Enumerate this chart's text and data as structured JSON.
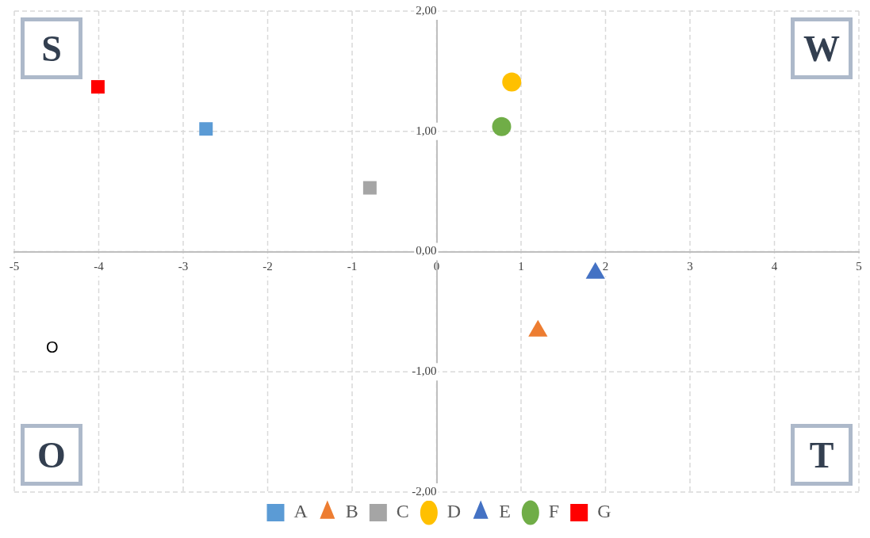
{
  "chart_data": {
    "type": "scatter",
    "xlim": [
      -5,
      5
    ],
    "xticks": [
      -5,
      -4,
      -3,
      -2,
      -1,
      0,
      1,
      2,
      3,
      4,
      5
    ],
    "ylim": [
      -2,
      2
    ],
    "yticks": [
      {
        "value": -2,
        "label": "-2,00"
      },
      {
        "value": -1,
        "label": "-1,00"
      },
      {
        "value": 0,
        "label": "0,00"
      },
      {
        "value": 1,
        "label": "1,00"
      },
      {
        "value": 2,
        "label": "2,00"
      }
    ],
    "grid": true,
    "legend": "bottom",
    "series": [
      {
        "name": "A",
        "color": "#5b9bd5",
        "marker": "square",
        "x": [
          -2.73
        ],
        "values": [
          1.02
        ]
      },
      {
        "name": "B",
        "color": "#ed7d31",
        "marker": "triangle",
        "x": [
          1.2
        ],
        "values": [
          -0.66
        ]
      },
      {
        "name": "C",
        "color": "#a5a5a5",
        "marker": "square",
        "x": [
          -0.79
        ],
        "values": [
          0.53
        ]
      },
      {
        "name": "D",
        "color": "#ffc000",
        "marker": "circle",
        "x": [
          0.89
        ],
        "values": [
          1.41
        ]
      },
      {
        "name": "E",
        "color": "#4472c4",
        "marker": "triangle",
        "x": [
          1.88
        ],
        "values": [
          -0.18
        ]
      },
      {
        "name": "F",
        "color": "#70ad47",
        "marker": "circle",
        "x": [
          0.77
        ],
        "values": [
          1.04
        ]
      },
      {
        "name": "G",
        "color": "#ff0000",
        "marker": "square",
        "x": [
          -4.01
        ],
        "values": [
          1.37
        ]
      }
    ],
    "annotations": [
      "S",
      "W",
      "O",
      "T",
      "O"
    ]
  }
}
